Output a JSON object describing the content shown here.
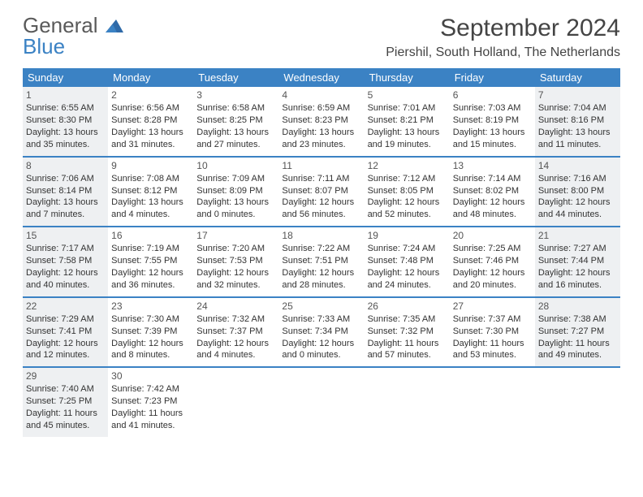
{
  "logo": {
    "line1": "General",
    "line2": "Blue",
    "color_gray": "#5a5a5a",
    "color_blue": "#3b82c4"
  },
  "header": {
    "month_title": "September 2024",
    "location": "Piershil, South Holland, The Netherlands"
  },
  "calendar": {
    "weekday_bg": "#3b82c4",
    "weekday_fg": "#ffffff",
    "week_border_color": "#3b82c4",
    "shaded_bg": "#eef0f2",
    "weekdays": [
      "Sunday",
      "Monday",
      "Tuesday",
      "Wednesday",
      "Thursday",
      "Friday",
      "Saturday"
    ],
    "weeks": [
      [
        {
          "day": "1",
          "sunrise": "Sunrise: 6:55 AM",
          "sunset": "Sunset: 8:30 PM",
          "daylight_l1": "Daylight: 13 hours",
          "daylight_l2": "and 35 minutes.",
          "shaded": true
        },
        {
          "day": "2",
          "sunrise": "Sunrise: 6:56 AM",
          "sunset": "Sunset: 8:28 PM",
          "daylight_l1": "Daylight: 13 hours",
          "daylight_l2": "and 31 minutes."
        },
        {
          "day": "3",
          "sunrise": "Sunrise: 6:58 AM",
          "sunset": "Sunset: 8:25 PM",
          "daylight_l1": "Daylight: 13 hours",
          "daylight_l2": "and 27 minutes."
        },
        {
          "day": "4",
          "sunrise": "Sunrise: 6:59 AM",
          "sunset": "Sunset: 8:23 PM",
          "daylight_l1": "Daylight: 13 hours",
          "daylight_l2": "and 23 minutes."
        },
        {
          "day": "5",
          "sunrise": "Sunrise: 7:01 AM",
          "sunset": "Sunset: 8:21 PM",
          "daylight_l1": "Daylight: 13 hours",
          "daylight_l2": "and 19 minutes."
        },
        {
          "day": "6",
          "sunrise": "Sunrise: 7:03 AM",
          "sunset": "Sunset: 8:19 PM",
          "daylight_l1": "Daylight: 13 hours",
          "daylight_l2": "and 15 minutes."
        },
        {
          "day": "7",
          "sunrise": "Sunrise: 7:04 AM",
          "sunset": "Sunset: 8:16 PM",
          "daylight_l1": "Daylight: 13 hours",
          "daylight_l2": "and 11 minutes.",
          "shaded": true
        }
      ],
      [
        {
          "day": "8",
          "sunrise": "Sunrise: 7:06 AM",
          "sunset": "Sunset: 8:14 PM",
          "daylight_l1": "Daylight: 13 hours",
          "daylight_l2": "and 7 minutes.",
          "shaded": true
        },
        {
          "day": "9",
          "sunrise": "Sunrise: 7:08 AM",
          "sunset": "Sunset: 8:12 PM",
          "daylight_l1": "Daylight: 13 hours",
          "daylight_l2": "and 4 minutes."
        },
        {
          "day": "10",
          "sunrise": "Sunrise: 7:09 AM",
          "sunset": "Sunset: 8:09 PM",
          "daylight_l1": "Daylight: 13 hours",
          "daylight_l2": "and 0 minutes."
        },
        {
          "day": "11",
          "sunrise": "Sunrise: 7:11 AM",
          "sunset": "Sunset: 8:07 PM",
          "daylight_l1": "Daylight: 12 hours",
          "daylight_l2": "and 56 minutes."
        },
        {
          "day": "12",
          "sunrise": "Sunrise: 7:12 AM",
          "sunset": "Sunset: 8:05 PM",
          "daylight_l1": "Daylight: 12 hours",
          "daylight_l2": "and 52 minutes."
        },
        {
          "day": "13",
          "sunrise": "Sunrise: 7:14 AM",
          "sunset": "Sunset: 8:02 PM",
          "daylight_l1": "Daylight: 12 hours",
          "daylight_l2": "and 48 minutes."
        },
        {
          "day": "14",
          "sunrise": "Sunrise: 7:16 AM",
          "sunset": "Sunset: 8:00 PM",
          "daylight_l1": "Daylight: 12 hours",
          "daylight_l2": "and 44 minutes.",
          "shaded": true
        }
      ],
      [
        {
          "day": "15",
          "sunrise": "Sunrise: 7:17 AM",
          "sunset": "Sunset: 7:58 PM",
          "daylight_l1": "Daylight: 12 hours",
          "daylight_l2": "and 40 minutes.",
          "shaded": true
        },
        {
          "day": "16",
          "sunrise": "Sunrise: 7:19 AM",
          "sunset": "Sunset: 7:55 PM",
          "daylight_l1": "Daylight: 12 hours",
          "daylight_l2": "and 36 minutes."
        },
        {
          "day": "17",
          "sunrise": "Sunrise: 7:20 AM",
          "sunset": "Sunset: 7:53 PM",
          "daylight_l1": "Daylight: 12 hours",
          "daylight_l2": "and 32 minutes."
        },
        {
          "day": "18",
          "sunrise": "Sunrise: 7:22 AM",
          "sunset": "Sunset: 7:51 PM",
          "daylight_l1": "Daylight: 12 hours",
          "daylight_l2": "and 28 minutes."
        },
        {
          "day": "19",
          "sunrise": "Sunrise: 7:24 AM",
          "sunset": "Sunset: 7:48 PM",
          "daylight_l1": "Daylight: 12 hours",
          "daylight_l2": "and 24 minutes."
        },
        {
          "day": "20",
          "sunrise": "Sunrise: 7:25 AM",
          "sunset": "Sunset: 7:46 PM",
          "daylight_l1": "Daylight: 12 hours",
          "daylight_l2": "and 20 minutes."
        },
        {
          "day": "21",
          "sunrise": "Sunrise: 7:27 AM",
          "sunset": "Sunset: 7:44 PM",
          "daylight_l1": "Daylight: 12 hours",
          "daylight_l2": "and 16 minutes.",
          "shaded": true
        }
      ],
      [
        {
          "day": "22",
          "sunrise": "Sunrise: 7:29 AM",
          "sunset": "Sunset: 7:41 PM",
          "daylight_l1": "Daylight: 12 hours",
          "daylight_l2": "and 12 minutes.",
          "shaded": true
        },
        {
          "day": "23",
          "sunrise": "Sunrise: 7:30 AM",
          "sunset": "Sunset: 7:39 PM",
          "daylight_l1": "Daylight: 12 hours",
          "daylight_l2": "and 8 minutes."
        },
        {
          "day": "24",
          "sunrise": "Sunrise: 7:32 AM",
          "sunset": "Sunset: 7:37 PM",
          "daylight_l1": "Daylight: 12 hours",
          "daylight_l2": "and 4 minutes."
        },
        {
          "day": "25",
          "sunrise": "Sunrise: 7:33 AM",
          "sunset": "Sunset: 7:34 PM",
          "daylight_l1": "Daylight: 12 hours",
          "daylight_l2": "and 0 minutes."
        },
        {
          "day": "26",
          "sunrise": "Sunrise: 7:35 AM",
          "sunset": "Sunset: 7:32 PM",
          "daylight_l1": "Daylight: 11 hours",
          "daylight_l2": "and 57 minutes."
        },
        {
          "day": "27",
          "sunrise": "Sunrise: 7:37 AM",
          "sunset": "Sunset: 7:30 PM",
          "daylight_l1": "Daylight: 11 hours",
          "daylight_l2": "and 53 minutes."
        },
        {
          "day": "28",
          "sunrise": "Sunrise: 7:38 AM",
          "sunset": "Sunset: 7:27 PM",
          "daylight_l1": "Daylight: 11 hours",
          "daylight_l2": "and 49 minutes.",
          "shaded": true
        }
      ],
      [
        {
          "day": "29",
          "sunrise": "Sunrise: 7:40 AM",
          "sunset": "Sunset: 7:25 PM",
          "daylight_l1": "Daylight: 11 hours",
          "daylight_l2": "and 45 minutes.",
          "shaded": true
        },
        {
          "day": "30",
          "sunrise": "Sunrise: 7:42 AM",
          "sunset": "Sunset: 7:23 PM",
          "daylight_l1": "Daylight: 11 hours",
          "daylight_l2": "and 41 minutes."
        },
        {
          "empty": true
        },
        {
          "empty": true
        },
        {
          "empty": true
        },
        {
          "empty": true
        },
        {
          "empty": true
        }
      ]
    ]
  }
}
